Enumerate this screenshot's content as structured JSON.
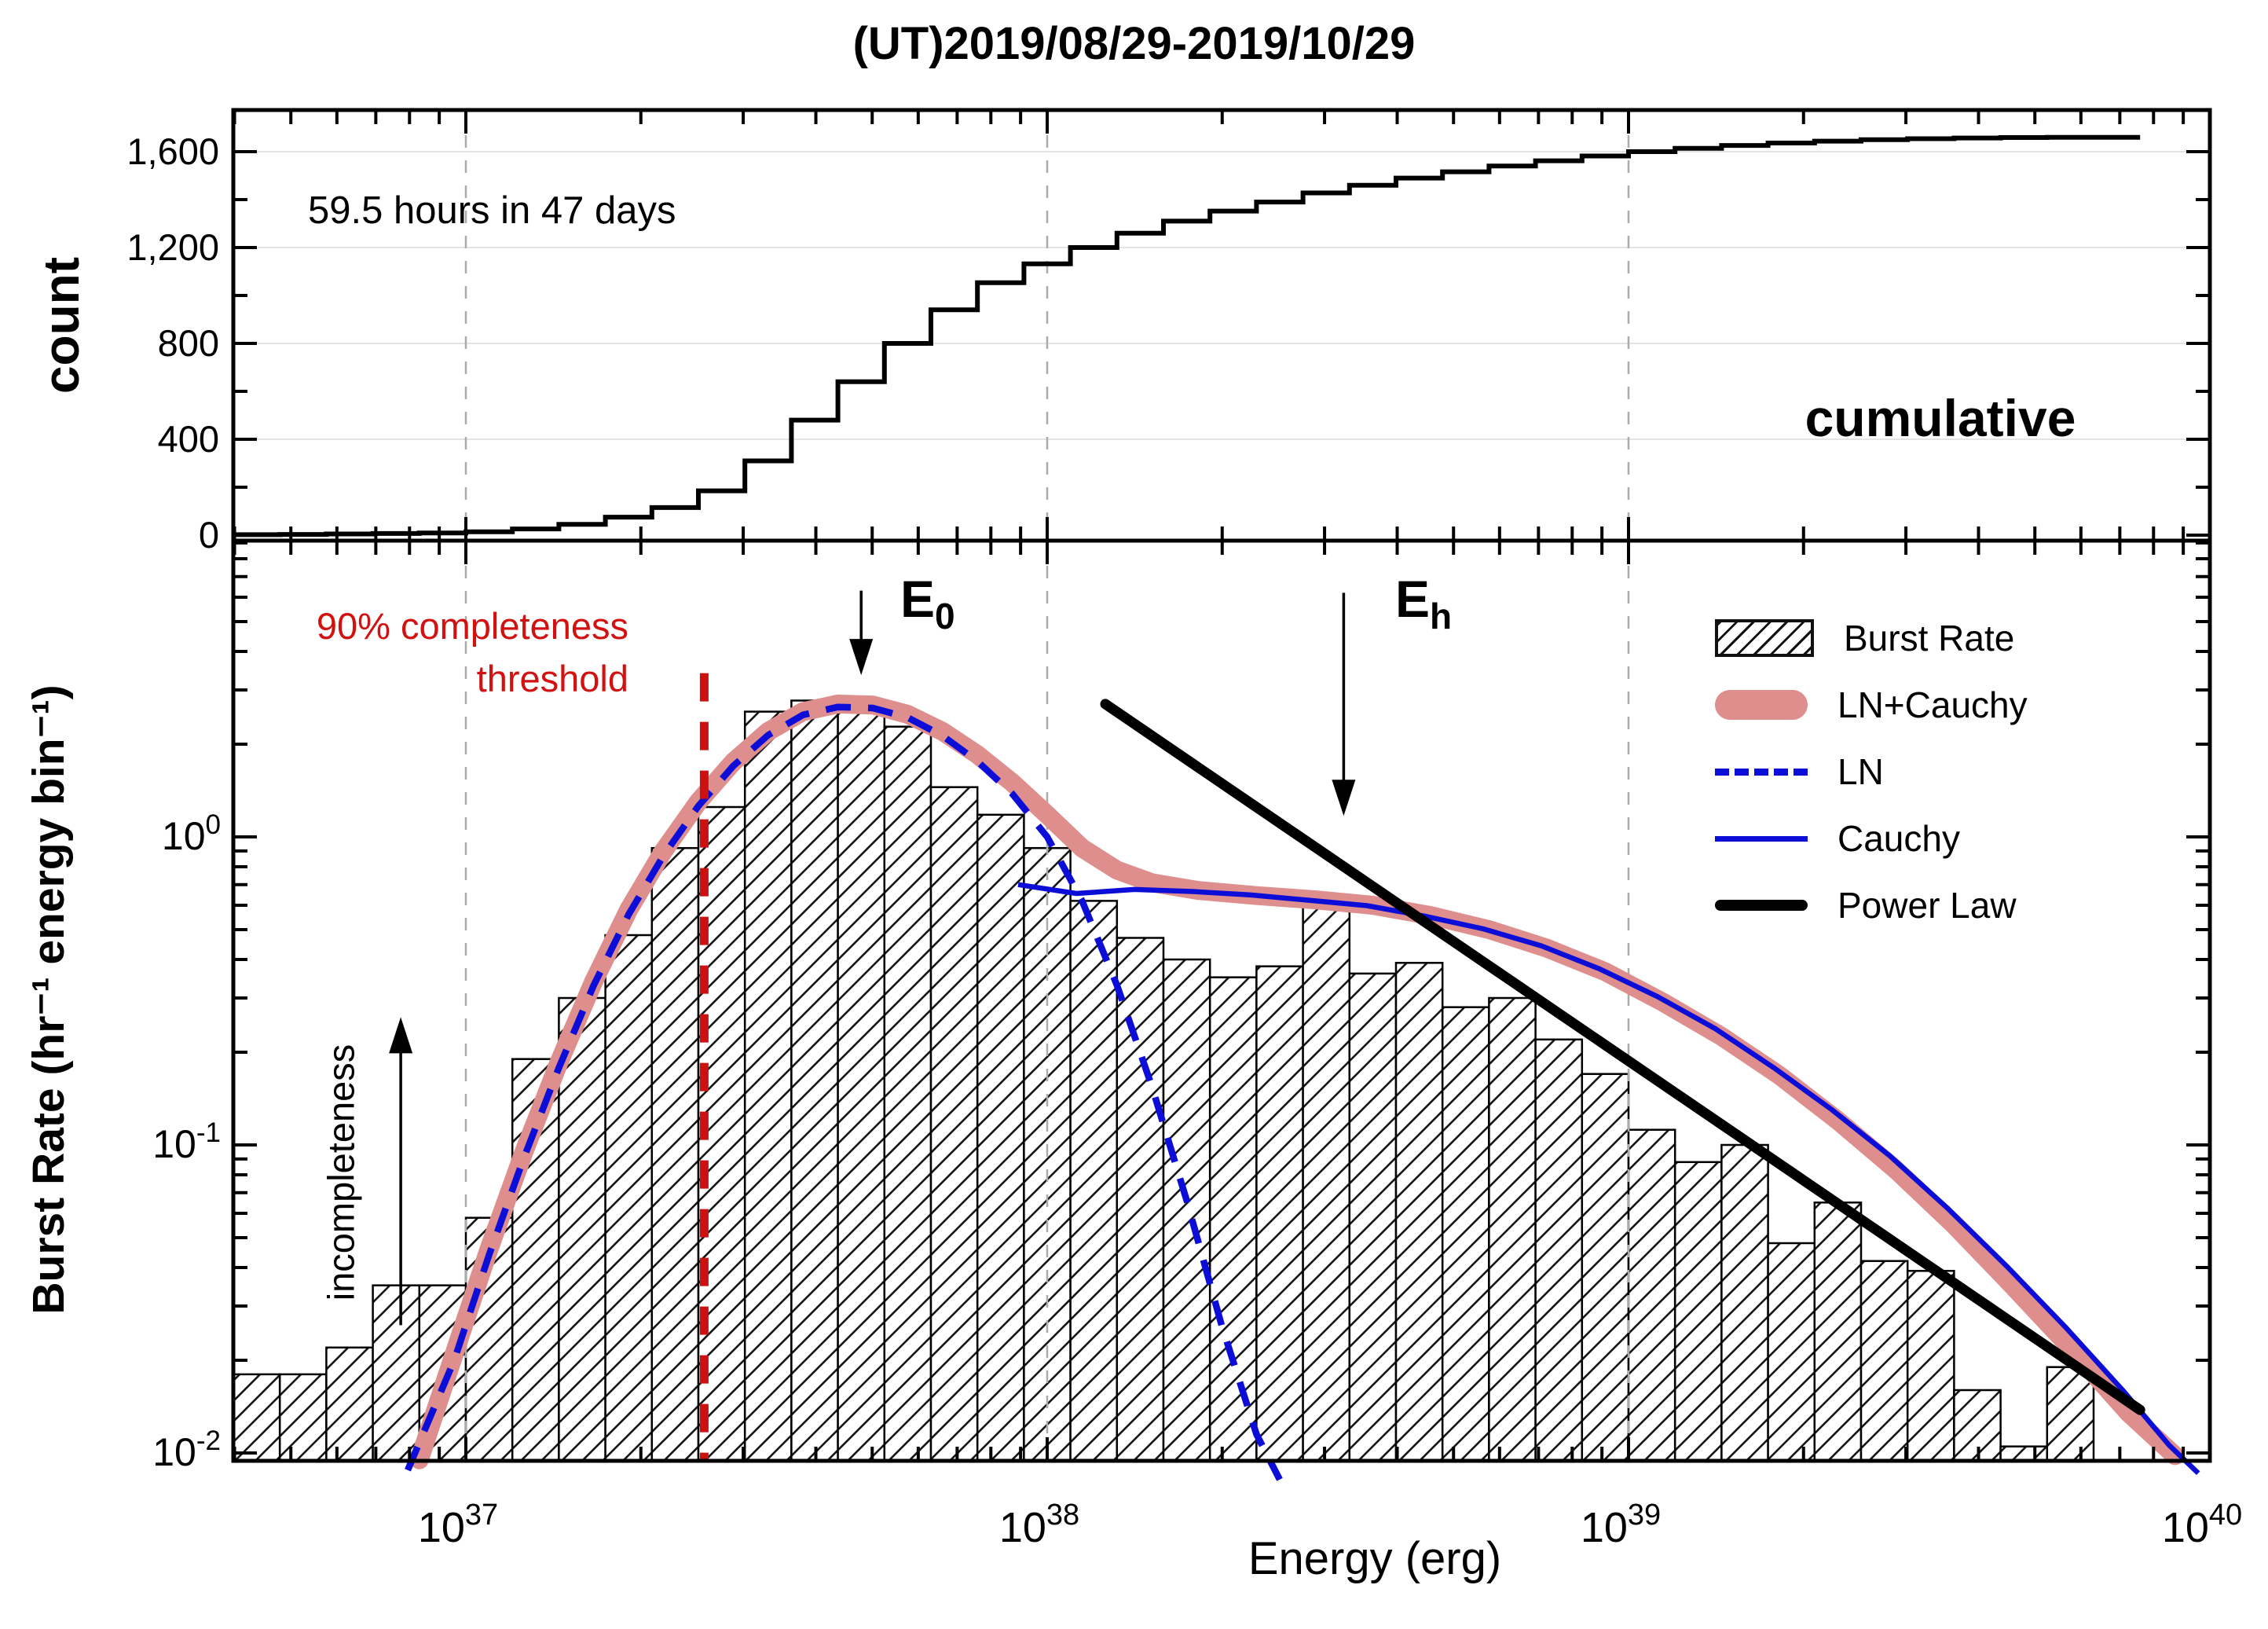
{
  "title": "(UT)2019/08/29-2019/10/29",
  "top_panel": {
    "ylabel": "count",
    "annotation": "59.5 hours in 47 days",
    "corner_label": "cumulative"
  },
  "bottom_panel": {
    "ylabel": "Burst Rate (hr⁻¹ energy bin⁻¹)",
    "xlabel": "Energy (erg)",
    "threshold_label": {
      "line1": "90% completeness",
      "line2": "threshold"
    },
    "e0": {
      "main": "E",
      "sub": "0"
    },
    "eh": {
      "main": "E",
      "sub": "h"
    },
    "incompleteness": "incompleteness"
  },
  "legend": {
    "items": [
      {
        "label": "Burst Rate",
        "swatch": "hatch-box"
      },
      {
        "label": "LN+Cauchy",
        "swatch": "thick-pink-line"
      },
      {
        "label": "LN",
        "swatch": "dashed-blue-line"
      },
      {
        "label": "Cauchy",
        "swatch": "solid-blue-line"
      },
      {
        "label": "Power Law",
        "swatch": "thick-black-line"
      }
    ]
  },
  "colors": {
    "pink": "#df8e8e",
    "blue": "#0d0dd8",
    "red": "#cc1111",
    "red_text": "#d21111",
    "grid_dash": "#ababab",
    "grid_light": "#e4e4e4",
    "black": "#000000"
  },
  "chart_data": [
    {
      "id": "cumulative-panel",
      "type": "line",
      "subtype": "step",
      "ylabel": "count",
      "annotation": "59.5 hours in 47 days",
      "series_label": "cumulative",
      "x_is_log": true,
      "xlim_log": [
        36.6,
        40.0
      ],
      "ylim": [
        0,
        1774
      ],
      "x_gridlines_log": [
        37,
        38,
        39
      ],
      "y_gridlines": [
        400,
        800,
        1200,
        1600
      ],
      "y_ticks": [
        {
          "value": 0,
          "label": "0"
        },
        {
          "value": 400,
          "label": "400"
        },
        {
          "value": 800,
          "label": "800"
        },
        {
          "value": 1200,
          "label": "1,200"
        },
        {
          "value": 1600,
          "label": "1,600"
        }
      ],
      "y_minor_ticks": [
        200,
        600,
        1000,
        1400
      ],
      "bin_start_log": 36.6,
      "bin_width_dex": 0.08,
      "end_log": 39.88,
      "cumulative_counts": [
        2,
        3,
        5,
        7,
        9,
        14,
        26,
        45,
        75,
        115,
        185,
        310,
        480,
        640,
        800,
        940,
        1053,
        1132,
        1200,
        1260,
        1310,
        1352,
        1390,
        1428,
        1460,
        1490,
        1516,
        1540,
        1562,
        1582,
        1600,
        1614,
        1626,
        1636,
        1644,
        1650,
        1654,
        1657,
        1659,
        1660
      ]
    },
    {
      "id": "burst-rate-panel",
      "type": "bar",
      "ylabel": "Burst Rate (hr⁻¹ energy bin⁻¹)",
      "xlabel": "Energy (erg)",
      "x_is_log": true,
      "y_is_log": true,
      "xlim_log": [
        36.6,
        40.0
      ],
      "ylim_log": [
        -2.026,
        0.962
      ],
      "x_gridlines_log": [
        37,
        38,
        39
      ],
      "x_ticks": [
        {
          "log": 37,
          "base": "10",
          "exp": "37"
        },
        {
          "log": 38,
          "base": "10",
          "exp": "38"
        },
        {
          "log": 39,
          "base": "10",
          "exp": "39"
        },
        {
          "log": 40,
          "base": "10",
          "exp": "40"
        }
      ],
      "y_ticks": [
        {
          "log": 0,
          "base": "10",
          "exp": "0"
        },
        {
          "log": -1,
          "base": "10",
          "exp": "-1"
        },
        {
          "log": -2,
          "base": "10",
          "exp": "-2"
        }
      ],
      "bars": {
        "name": "Burst Rate",
        "bin_start_log": 36.6,
        "bin_width_dex": 0.08,
        "rates": [
          0.018,
          0.018,
          0.022,
          0.035,
          0.035,
          0.058,
          0.19,
          0.3,
          0.48,
          0.92,
          1.25,
          2.55,
          2.77,
          2.64,
          2.28,
          1.45,
          1.18,
          0.92,
          0.62,
          0.47,
          0.4,
          0.35,
          0.38,
          0.6,
          0.36,
          0.39,
          0.28,
          0.3,
          0.22,
          0.17,
          0.112,
          0.088,
          0.1,
          0.048,
          0.065,
          0.042,
          0.039,
          0.016,
          0.0105,
          0.019
        ]
      },
      "series": [
        {
          "name": "LN+Cauchy",
          "style": "thick-pink",
          "points": [
            [
              36.92,
              0.0095
            ],
            [
              36.98,
              0.021
            ],
            [
              37.04,
              0.046
            ],
            [
              37.1,
              0.095
            ],
            [
              37.16,
              0.185
            ],
            [
              37.22,
              0.34
            ],
            [
              37.28,
              0.58
            ],
            [
              37.34,
              0.9
            ],
            [
              37.4,
              1.3
            ],
            [
              37.46,
              1.75
            ],
            [
              37.52,
              2.2
            ],
            [
              37.58,
              2.55
            ],
            [
              37.64,
              2.7
            ],
            [
              37.7,
              2.68
            ],
            [
              37.76,
              2.5
            ],
            [
              37.82,
              2.2
            ],
            [
              37.88,
              1.85
            ],
            [
              37.94,
              1.5
            ],
            [
              38.0,
              1.18
            ],
            [
              38.06,
              0.92
            ],
            [
              38.12,
              0.78
            ],
            [
              38.18,
              0.71
            ],
            [
              38.26,
              0.67
            ],
            [
              38.36,
              0.645
            ],
            [
              38.46,
              0.625
            ],
            [
              38.56,
              0.6
            ],
            [
              38.66,
              0.555
            ],
            [
              38.76,
              0.5
            ],
            [
              38.86,
              0.435
            ],
            [
              38.96,
              0.365
            ],
            [
              39.06,
              0.29
            ],
            [
              39.16,
              0.225
            ],
            [
              39.26,
              0.168
            ],
            [
              39.36,
              0.12
            ],
            [
              39.46,
              0.083
            ],
            [
              39.56,
              0.055
            ],
            [
              39.66,
              0.035
            ],
            [
              39.76,
              0.022
            ],
            [
              39.86,
              0.0135
            ],
            [
              39.94,
              0.0098
            ]
          ]
        },
        {
          "name": "LN",
          "style": "dashed-blue",
          "points": [
            [
              36.9,
              0.0088
            ],
            [
              36.98,
              0.02
            ],
            [
              37.04,
              0.044
            ],
            [
              37.1,
              0.091
            ],
            [
              37.16,
              0.178
            ],
            [
              37.22,
              0.33
            ],
            [
              37.28,
              0.56
            ],
            [
              37.34,
              0.87
            ],
            [
              37.4,
              1.26
            ],
            [
              37.46,
              1.7
            ],
            [
              37.52,
              2.14
            ],
            [
              37.58,
              2.49
            ],
            [
              37.64,
              2.64
            ],
            [
              37.7,
              2.62
            ],
            [
              37.76,
              2.44
            ],
            [
              37.82,
              2.13
            ],
            [
              37.88,
              1.76
            ],
            [
              37.94,
              1.38
            ],
            [
              38.0,
              1.0
            ],
            [
              38.06,
              0.62
            ],
            [
              38.12,
              0.33
            ],
            [
              38.18,
              0.155
            ],
            [
              38.24,
              0.066
            ],
            [
              38.3,
              0.026
            ],
            [
              38.36,
              0.0115
            ],
            [
              38.4,
              0.0082
            ]
          ]
        },
        {
          "name": "Cauchy",
          "style": "solid-blue",
          "points": [
            [
              37.95,
              0.7
            ],
            [
              38.05,
              0.655
            ],
            [
              38.15,
              0.675
            ],
            [
              38.25,
              0.665
            ],
            [
              38.35,
              0.648
            ],
            [
              38.45,
              0.623
            ],
            [
              38.55,
              0.598
            ],
            [
              38.65,
              0.553
            ],
            [
              38.75,
              0.503
            ],
            [
              38.85,
              0.443
            ],
            [
              38.95,
              0.373
            ],
            [
              39.05,
              0.303
            ],
            [
              39.15,
              0.238
            ],
            [
              39.25,
              0.178
            ],
            [
              39.35,
              0.13
            ],
            [
              39.45,
              0.092
            ],
            [
              39.55,
              0.062
            ],
            [
              39.65,
              0.0405
            ],
            [
              39.75,
              0.0258
            ],
            [
              39.85,
              0.016
            ],
            [
              39.93,
              0.0106
            ],
            [
              39.98,
              0.0086
            ]
          ]
        },
        {
          "name": "Power Law",
          "style": "thick-black",
          "points": [
            [
              38.1,
              2.7
            ],
            [
              39.88,
              0.0138
            ]
          ]
        }
      ],
      "threshold": {
        "x_log": 37.41,
        "rate_top": 3.4
      },
      "arrows": [
        {
          "name": "e0-arrow",
          "x_log": 37.68,
          "rate_from": 6.3,
          "rate_to": 3.35,
          "direction": "down"
        },
        {
          "name": "eh-arrow",
          "x_log": 38.51,
          "rate_from": 6.2,
          "rate_to": 1.17,
          "direction": "down"
        },
        {
          "name": "incompleteness-arrow",
          "x_log": 36.888,
          "rate_from": 0.026,
          "rate_to": 0.26,
          "direction": "up"
        }
      ]
    }
  ]
}
